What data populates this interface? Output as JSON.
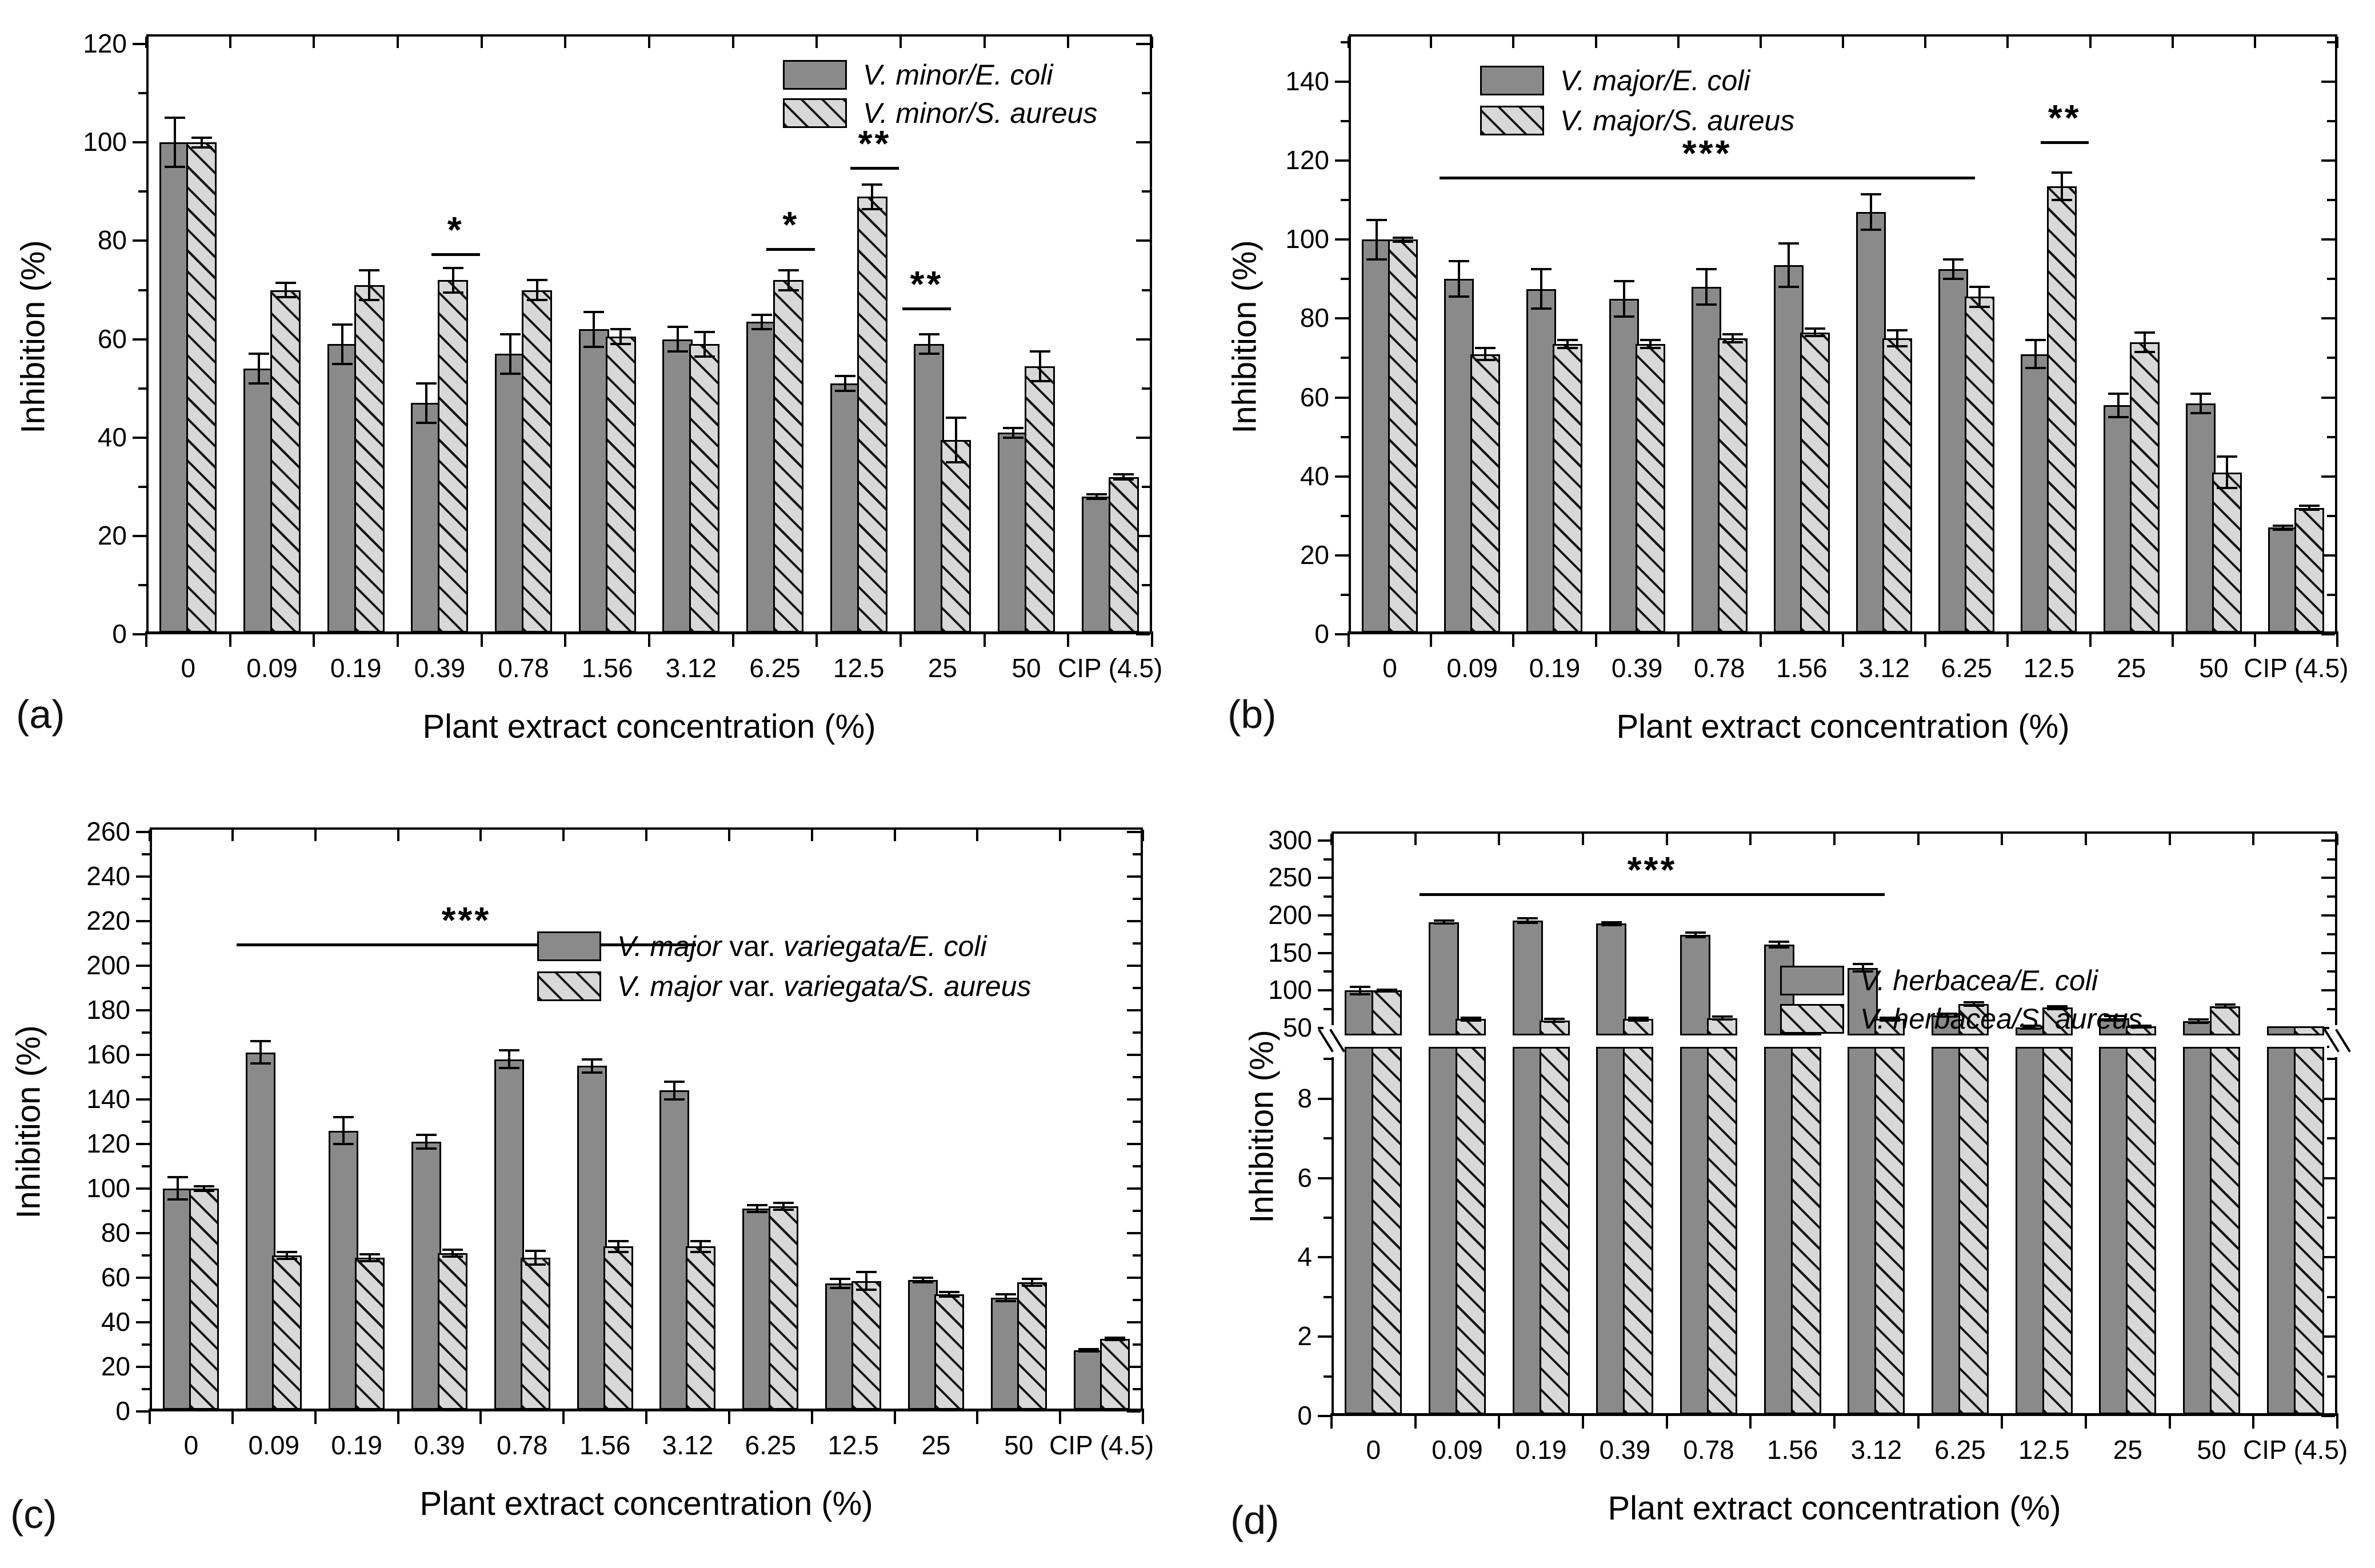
{
  "figure": {
    "panels": [
      {
        "label": "(a)"
      },
      {
        "label": "(b)"
      },
      {
        "label": "(c)"
      },
      {
        "label": "(d)"
      }
    ]
  },
  "colors": {
    "bar_solid": "#8a8a8a",
    "bar_hatch_bg": "#d8d8d8",
    "hatch_line": "#151515",
    "outline": "#000000",
    "text": "#000000"
  },
  "chart_data": [
    {
      "type": "bar",
      "panel": "a",
      "title": "",
      "xlabel": "Plant extract concentration (%)",
      "ylabel": "Inhibition (%)",
      "categories": [
        "0",
        "0.09",
        "0.19",
        "0.39",
        "0.78",
        "1.56",
        "3.12",
        "6.25",
        "12.5",
        "25",
        "50",
        "CIP (4.5)"
      ],
      "ylim": [
        0,
        122
      ],
      "yticks": [
        0,
        20,
        40,
        60,
        80,
        100,
        120
      ],
      "yminor": 10,
      "grid": false,
      "legend_position": "top-right",
      "series": [
        {
          "name": "V. minor/E. coli",
          "pattern": "solid",
          "values": [
            100,
            54,
            59,
            47,
            57,
            62,
            60,
            63.5,
            51,
            59,
            41,
            28
          ],
          "errors": [
            5,
            3,
            4,
            4,
            4,
            3.5,
            2.5,
            1.5,
            1.5,
            2,
            1,
            0.5
          ]
        },
        {
          "name": "V. minor/S. aureus",
          "pattern": "hatched",
          "values": [
            100,
            70,
            71,
            72,
            70,
            60.5,
            59,
            72,
            89,
            39.5,
            54.5,
            32
          ],
          "errors": [
            1,
            1.5,
            3,
            2.5,
            2,
            1.5,
            2.5,
            2,
            2.5,
            4.5,
            3,
            0.5
          ]
        }
      ],
      "annotations": [
        {
          "text": "*",
          "x_from": 3.4,
          "x_to": 3.98,
          "y": 77.5
        },
        {
          "text": "*",
          "x_from": 7.4,
          "x_to": 7.98,
          "y": 78.5
        },
        {
          "text": "**",
          "x_from": 8.4,
          "x_to": 8.98,
          "y": 95
        },
        {
          "text": "**",
          "x_from": 9.02,
          "x_to": 9.6,
          "y": 66.5
        }
      ]
    },
    {
      "type": "bar",
      "panel": "b",
      "title": "",
      "xlabel": "Plant extract concentration (%)",
      "ylabel": "Inhibition (%)",
      "categories": [
        "0",
        "0.09",
        "0.19",
        "0.39",
        "0.78",
        "1.56",
        "3.12",
        "6.25",
        "12.5",
        "25",
        "50",
        "CIP (4.5)"
      ],
      "ylim": [
        0,
        152
      ],
      "yticks": [
        0,
        20,
        40,
        60,
        80,
        100,
        120,
        140
      ],
      "yminor": 10,
      "grid": false,
      "legend_position": "top-left",
      "series": [
        {
          "name": "V. major/E. coli",
          "pattern": "solid",
          "values": [
            100,
            90,
            87.5,
            85,
            88,
            93.5,
            107,
            92.5,
            71,
            58,
            58.5,
            27
          ],
          "errors": [
            5,
            4.5,
            5,
            4.5,
            4.5,
            5.5,
            4.5,
            2.5,
            3.5,
            3,
            2.5,
            0.5
          ]
        },
        {
          "name": "V. major/S. aureus",
          "pattern": "hatched",
          "values": [
            100,
            71,
            73.5,
            73.5,
            75,
            76.5,
            75,
            85.5,
            113.5,
            74,
            41,
            32
          ],
          "errors": [
            0.5,
            1.5,
            1,
            1,
            1,
            1,
            2,
            2.5,
            3.5,
            2.5,
            4,
            0.5
          ]
        }
      ],
      "annotations": [
        {
          "text": "***",
          "x_from": 1.1,
          "x_to": 7.6,
          "y": 116
        },
        {
          "text": "**",
          "x_from": 8.4,
          "x_to": 8.98,
          "y": 125
        }
      ]
    },
    {
      "type": "bar",
      "panel": "c",
      "title": "",
      "xlabel": "Plant extract concentration (%)",
      "ylabel": "Inhibition (%)",
      "categories": [
        "0",
        "0.09",
        "0.19",
        "0.39",
        "0.78",
        "1.56",
        "3.12",
        "6.25",
        "12.5",
        "25",
        "50",
        "CIP (4.5)"
      ],
      "ylim": [
        0,
        262
      ],
      "yticks": [
        0,
        20,
        40,
        60,
        80,
        100,
        120,
        140,
        160,
        180,
        200,
        220,
        240,
        260
      ],
      "yminor": 10,
      "grid": false,
      "legend_position": "top-right",
      "series": [
        {
          "name": "V. major var. variegata/E. coli",
          "pattern": "solid",
          "values": [
            100,
            161,
            126,
            121,
            158,
            155,
            144,
            91,
            57.5,
            59,
            51,
            27.5
          ],
          "errors": [
            5,
            5,
            6,
            3,
            4,
            3,
            4,
            1.5,
            2,
            1,
            1.5,
            0.5
          ]
        },
        {
          "name": "V. major var. variegata/S. aureus",
          "pattern": "hatched",
          "values": [
            100,
            70,
            69,
            71,
            69,
            74,
            74,
            92,
            58.5,
            52.5,
            58,
            32.5
          ],
          "errors": [
            1,
            1.5,
            1.5,
            1.5,
            3,
            2.5,
            2.5,
            1.5,
            4,
            1,
            1.5,
            0.5
          ]
        }
      ],
      "annotations": [
        {
          "text": "***",
          "x_from": 1.05,
          "x_to": 6.6,
          "y": 210
        }
      ]
    },
    {
      "type": "bar",
      "panel": "d",
      "title": "",
      "xlabel": "Plant extract concentration (%)",
      "ylabel": "Inhibition (%)",
      "categories": [
        "0",
        "0.09",
        "0.19",
        "0.39",
        "0.78",
        "1.56",
        "3.12",
        "6.25",
        "12.5",
        "25",
        "50",
        "CIP (4.5)"
      ],
      "axis_break": {
        "upper_top_value": 312,
        "upper_gap_value": 40,
        "lower_gap_value": 9.3,
        "gap_top_frac": 0.349,
        "gap_bottom_frac": 0.369,
        "yticks_upper": [
          50,
          100,
          150,
          200,
          250,
          300
        ],
        "yticks_lower": [
          0,
          2,
          4,
          6,
          8
        ],
        "yminor_upper": 25,
        "yminor_lower": 1
      },
      "grid": false,
      "legend_position": "top-right",
      "series": [
        {
          "name": "V. herbacea/E. coli",
          "pattern": "solid",
          "values": [
            100,
            191,
            193,
            189,
            174,
            161,
            130,
            67,
            51,
            63,
            59,
            30
          ],
          "errors": [
            5,
            2,
            3,
            2,
            3,
            4,
            5,
            2,
            2,
            3,
            2,
            1
          ]
        },
        {
          "name": "V. herbacea/S. aureus",
          "pattern": "hatched",
          "values": [
            100,
            62,
            60,
            62,
            63,
            62,
            62,
            82,
            77,
            52,
            79,
            33
          ],
          "errors": [
            1,
            2,
            2,
            2,
            2,
            2,
            2,
            2,
            2,
            1,
            2,
            1
          ]
        }
      ],
      "annotations": [
        {
          "text": "***",
          "x_from": 1.05,
          "x_to": 6.6,
          "y": 230
        }
      ]
    }
  ]
}
